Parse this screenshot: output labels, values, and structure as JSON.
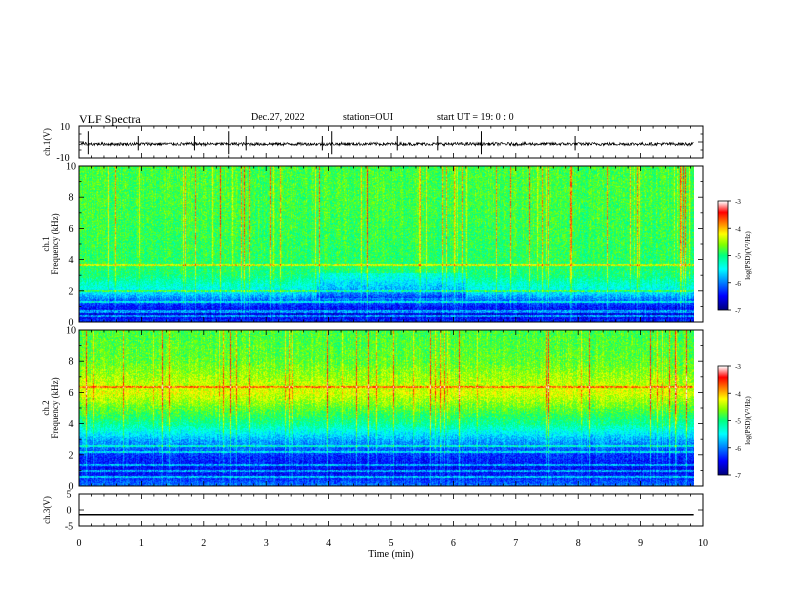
{
  "header": {
    "title": "VLF Spectra",
    "date": "Dec.27, 2022",
    "station": "station=OUI",
    "start": "start UT =  19: 0  : 0"
  },
  "chart_data": [
    {
      "type": "line",
      "name": "ch1-waveform",
      "ylabel": "ch.1(V)",
      "ylim": [
        -10,
        10
      ],
      "yticks": [
        "10",
        "-10"
      ],
      "xlim": [
        0,
        10
      ],
      "baseline": 0,
      "noise_amplitude": 1.0,
      "spikes_min": [
        0.15,
        0.95,
        1.85,
        2.4,
        2.68,
        3.9,
        4.05,
        5.1,
        5.75,
        6.45,
        7.95
      ],
      "color": "#000000"
    },
    {
      "type": "heatmap",
      "name": "ch1-spectrogram",
      "ylabel": "ch.1\nFrequency (kHz)",
      "ylim": [
        0,
        10
      ],
      "yticks": [
        "0",
        "2",
        "4",
        "6",
        "8",
        "10"
      ],
      "xlim": [
        0,
        9.85
      ],
      "colorbar": {
        "label": "log(PSD)(V²/Hz)",
        "range": [
          -7,
          -3
        ],
        "ticks": [
          "-3",
          "-4",
          "-5",
          "-6",
          "-7"
        ]
      },
      "profile_log_psd": [
        {
          "f": 0.0,
          "v": -6.3
        },
        {
          "f": 0.5,
          "v": -6.6
        },
        {
          "f": 1.0,
          "v": -6.4
        },
        {
          "f": 1.5,
          "v": -6.0
        },
        {
          "f": 2.0,
          "v": -5.5
        },
        {
          "f": 3.0,
          "v": -5.0
        },
        {
          "f": 4.0,
          "v": -4.9
        },
        {
          "f": 6.0,
          "v": -4.85
        },
        {
          "f": 8.0,
          "v": -4.8
        },
        {
          "f": 10.0,
          "v": -4.8
        }
      ],
      "lines_khz": [
        0.4,
        0.7,
        1.3,
        2.0,
        3.7
      ],
      "features": "vertical sferic streaks; enhanced blue region near 2-3 kHz between 4-6 min"
    },
    {
      "type": "heatmap",
      "name": "ch2-spectrogram",
      "ylabel": "ch.2\nFrequency (kHz)",
      "ylim": [
        0,
        10
      ],
      "yticks": [
        "0",
        "2",
        "4",
        "6",
        "8",
        "10"
      ],
      "xlim": [
        0,
        9.85
      ],
      "colorbar": {
        "label": "log(PSD)(V²/Hz)",
        "range": [
          -7,
          -3
        ],
        "ticks": [
          "-3",
          "-4",
          "-5",
          "-6",
          "-7"
        ]
      },
      "profile_log_psd": [
        {
          "f": 0.0,
          "v": -6.0
        },
        {
          "f": 0.5,
          "v": -6.3
        },
        {
          "f": 1.0,
          "v": -6.5
        },
        {
          "f": 2.0,
          "v": -6.3
        },
        {
          "f": 3.0,
          "v": -5.8
        },
        {
          "f": 4.0,
          "v": -5.1
        },
        {
          "f": 5.0,
          "v": -4.7
        },
        {
          "f": 6.0,
          "v": -4.3
        },
        {
          "f": 7.0,
          "v": -4.5
        },
        {
          "f": 8.0,
          "v": -4.7
        },
        {
          "f": 10.0,
          "v": -4.8
        }
      ],
      "lines_khz": [
        0.6,
        1.0,
        1.4,
        2.2,
        2.6,
        6.4
      ],
      "features": "vertical sferic streaks; yellow band near 6 kHz; deep blue below 3 kHz"
    },
    {
      "type": "line",
      "name": "ch3-waveform",
      "ylabel": "ch.3(V)",
      "ylim": [
        -5,
        5
      ],
      "yticks": [
        "5",
        "0",
        "-5"
      ],
      "xlim": [
        0,
        9.85
      ],
      "value": -1.5,
      "color": "#000000"
    }
  ],
  "xaxis": {
    "label": "Time (min)",
    "range": [
      0,
      10
    ],
    "ticks": [
      "0",
      "1",
      "2",
      "3",
      "4",
      "5",
      "6",
      "7",
      "8",
      "9",
      "10"
    ]
  },
  "colors": {
    "map": [
      "#000080",
      "#0000ff",
      "#00ffff",
      "#00ff80",
      "#80ff00",
      "#ffff00",
      "#ff8000",
      "#ff0000",
      "#ffffff"
    ]
  }
}
